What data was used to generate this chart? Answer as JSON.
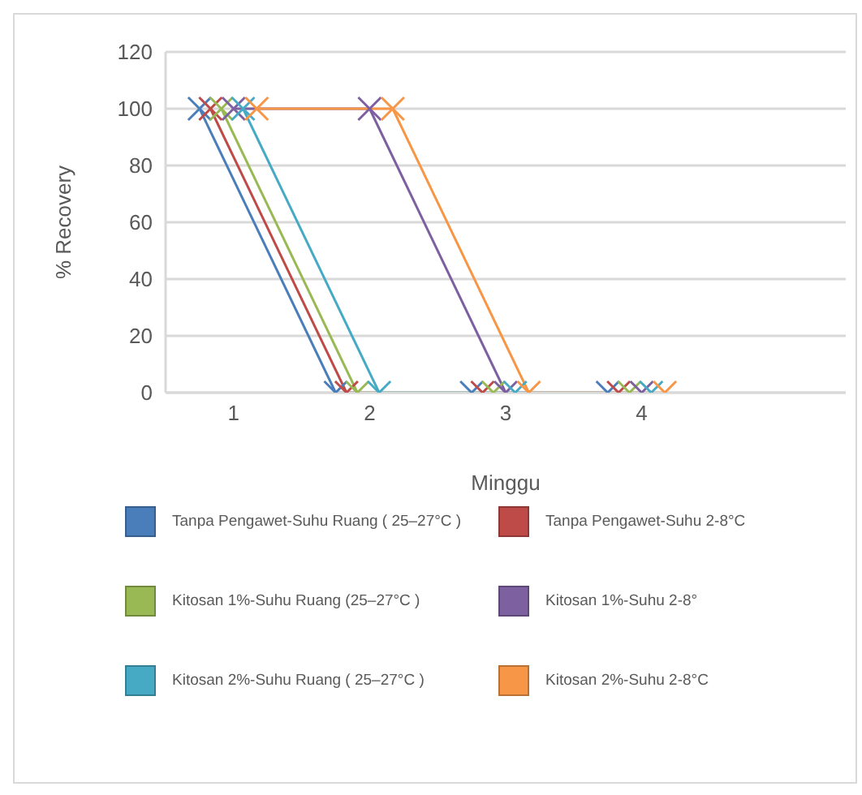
{
  "chart_data": {
    "type": "line",
    "xlabel": "Minggu",
    "ylabel": "% Recovery",
    "xlim": [
      0.5,
      5.5
    ],
    "xticks": [
      {
        "value": 1,
        "label": "1"
      },
      {
        "value": 2,
        "label": "2"
      },
      {
        "value": 3,
        "label": "3"
      },
      {
        "value": 4,
        "label": "4"
      }
    ],
    "ylim": [
      0,
      120
    ],
    "yticks": [
      0,
      20,
      40,
      60,
      80,
      100,
      120
    ],
    "grid": "y",
    "legend": "bottom",
    "marker": "cross",
    "line_style": "solid",
    "series": [
      {
        "name": "Tanpa Pengawet-Suhu Ruang ( 25–27°C )",
        "color": "#4a7ebb",
        "x": [
          0.75,
          1.75,
          2.75,
          3.75
        ],
        "values": [
          100,
          0,
          0,
          0
        ]
      },
      {
        "name": "Tanpa Pengawet-Suhu 2-8°C",
        "color": "#be4b48",
        "x": [
          0.83,
          1.83,
          2.83,
          3.83
        ],
        "values": [
          100,
          0,
          0,
          0
        ]
      },
      {
        "name": "Kitosan 1%-Suhu Ruang  (25–27°C )",
        "color": "#98b954",
        "x": [
          0.91,
          1.91,
          2.91,
          3.91
        ],
        "values": [
          100,
          0,
          0,
          0
        ]
      },
      {
        "name": "Kitosan 1%-Suhu  2-8°",
        "color": "#7d60a0",
        "x": [
          1.0,
          2.0,
          3.0,
          4.0
        ],
        "values": [
          100,
          100,
          0,
          0
        ]
      },
      {
        "name": "Kitosan 2%-Suhu Ruang ( 25–27°C )",
        "color": "#46aac5",
        "x": [
          1.07,
          2.07,
          3.07,
          4.07
        ],
        "values": [
          100,
          0,
          0,
          0
        ]
      },
      {
        "name": "Kitosan 2%-Suhu  2-8°C",
        "color": "#f79646",
        "x": [
          1.17,
          2.17,
          3.17,
          4.17
        ],
        "values": [
          100,
          100,
          0,
          0
        ]
      }
    ]
  }
}
